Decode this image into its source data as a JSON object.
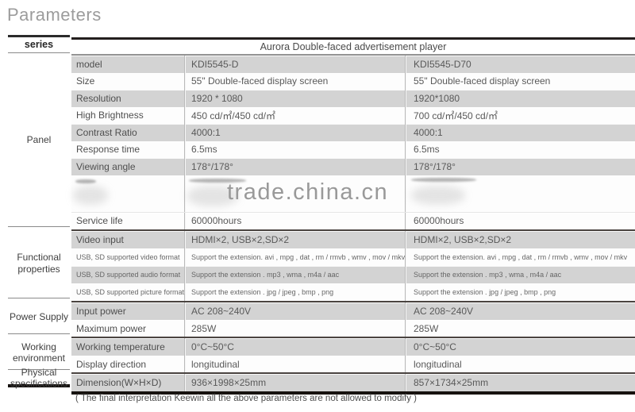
{
  "title": "Parameters",
  "sidebar": {
    "series_label": "series",
    "groups": [
      {
        "label": "Panel"
      },
      {
        "label": "Functional properties"
      },
      {
        "label": "Power Supply"
      },
      {
        "label": "Working environment"
      },
      {
        "label": "Physical specifications"
      }
    ]
  },
  "table": {
    "header": "Aurora Double-faced advertisement player",
    "rows": [
      {
        "label": "model",
        "v1": "KDI5545-D",
        "v2": "KDI5545-D70",
        "shade": "g"
      },
      {
        "label": "Size",
        "v1": "55\" Double-faced display screen",
        "v2": "55\" Double-faced display screen",
        "shade": "w"
      },
      {
        "label": "Resolution",
        "v1": "1920 * 1080",
        "v2": "1920*1080",
        "shade": "g"
      },
      {
        "label": "High Brightness",
        "v1": "450 cd/㎡/450 cd/㎡",
        "v2": "700 cd/㎡/450 cd/㎡",
        "shade": "w"
      },
      {
        "label": "Contrast Ratio",
        "v1": "4000:1",
        "v2": "4000:1",
        "shade": "g"
      },
      {
        "label": "Response time",
        "v1": "6.5ms",
        "v2": "6.5ms",
        "shade": "w"
      },
      {
        "label": "Viewing angle",
        "v1": "178°/178°",
        "v2": "178°/178°",
        "shade": "g"
      },
      {
        "label": "",
        "v1": "",
        "v2": "",
        "shade": "w",
        "kind": "watermark"
      },
      {
        "label": "Service life",
        "v1": "60000hours",
        "v2": "60000hours",
        "shade": "w"
      },
      {
        "label": "Video input",
        "v1": "HDMI×2, USB×2,SD×2",
        "v2": "HDMI×2, USB×2,SD×2",
        "shade": "g",
        "divider_before": true
      },
      {
        "label": "USB, SD supported video format",
        "v1": "Support the extension. avi , mpg , dat , rm / rmvb , wmv , mov / mkv",
        "v2": "Support the extension. avi , mpg , dat , rm / rmvb , wmv , mov / mkv",
        "shade": "w",
        "size": "small"
      },
      {
        "label": "USB, SD supported audio format",
        "v1": "Support the extension . mp3 , wma , m4a / aac",
        "v2": "Support the extension . mp3 , wma , m4a / aac",
        "shade": "g",
        "size": "small"
      },
      {
        "label": "USB, SD supported picture format",
        "v1": "Support the extension . jpg / jpeg , bmp , png",
        "v2": "Support the extension . jpg / jpeg , bmp , png",
        "shade": "w",
        "size": "small"
      },
      {
        "label": "Input power",
        "v1": "AC 208~240V",
        "v2": "AC 208~240V",
        "shade": "g",
        "divider_before": true
      },
      {
        "label": "Maximum power",
        "v1": "285W",
        "v2": "285W",
        "shade": "w"
      },
      {
        "label": "Working temperature",
        "v1": "0°C~50°C",
        "v2": "0°C~50°C",
        "shade": "g",
        "divider_before": true
      },
      {
        "label": "Display direction",
        "v1": "longitudinal",
        "v2": "longitudinal",
        "shade": "w"
      },
      {
        "label": "Dimension(W×H×D)",
        "v1": "936×1998×25mm",
        "v2": "857×1734×25mm",
        "shade": "g",
        "divider_before": true
      }
    ]
  },
  "watermark": "trade.china.cn",
  "footer": "( The final interpretation Keewin all the above parameters are not allowed to modify )",
  "colors": {
    "row_gray": "#d3d3d3",
    "row_white": "#fdfdfd",
    "border_dark": "#241f1e",
    "watermark_gray": "#999999"
  }
}
